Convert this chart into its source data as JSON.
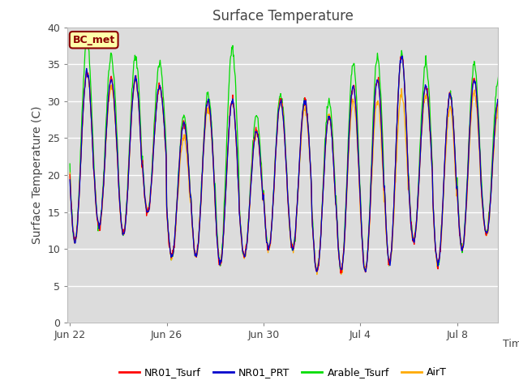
{
  "title": "Surface Temperature",
  "ylabel": "Surface Temperature (C)",
  "xlabel": "Time",
  "ylim": [
    0,
    40
  ],
  "yticks": [
    0,
    5,
    10,
    15,
    20,
    25,
    30,
    35,
    40
  ],
  "bg_color": "#dcdcdc",
  "fig_color": "#ffffff",
  "annotation_text": "BC_met",
  "annotation_bg": "#ffffaa",
  "annotation_border": "#8b0000",
  "annotation_text_color": "#8b0000",
  "legend_labels": [
    "NR01_Tsurf",
    "NR01_PRT",
    "Arable_Tsurf",
    "AirT"
  ],
  "line_colors": [
    "#ff0000",
    "#0000cc",
    "#00dd00",
    "#ffaa00"
  ],
  "n_days": 18,
  "samples_per_day": 48,
  "xtick_labels": [
    "Jun 22",
    "Jun 26",
    "Jun 30",
    "Jul 4",
    "Jul 8"
  ],
  "xtick_day_offsets": [
    0,
    4,
    8,
    12,
    16
  ],
  "base_min": [
    11,
    13,
    12,
    15,
    9,
    9,
    8,
    9,
    10,
    10,
    7,
    7,
    7,
    8,
    11,
    8,
    10,
    12
  ],
  "base_max_red": [
    34,
    33,
    33,
    32,
    27,
    30,
    30,
    26,
    30,
    30,
    28,
    32,
    33,
    36,
    32,
    31,
    33,
    30
  ],
  "base_max_green": [
    38,
    36,
    36,
    35,
    28,
    31,
    37,
    28,
    31,
    30,
    30,
    35,
    36,
    36,
    35,
    31,
    35,
    33
  ],
  "base_max_orange": [
    34,
    32,
    33,
    32,
    25,
    29,
    30,
    26,
    30,
    29,
    28,
    30,
    30,
    31,
    31,
    29,
    31,
    29
  ],
  "grid_color": "#ffffff",
  "grid_lw": 1.0
}
